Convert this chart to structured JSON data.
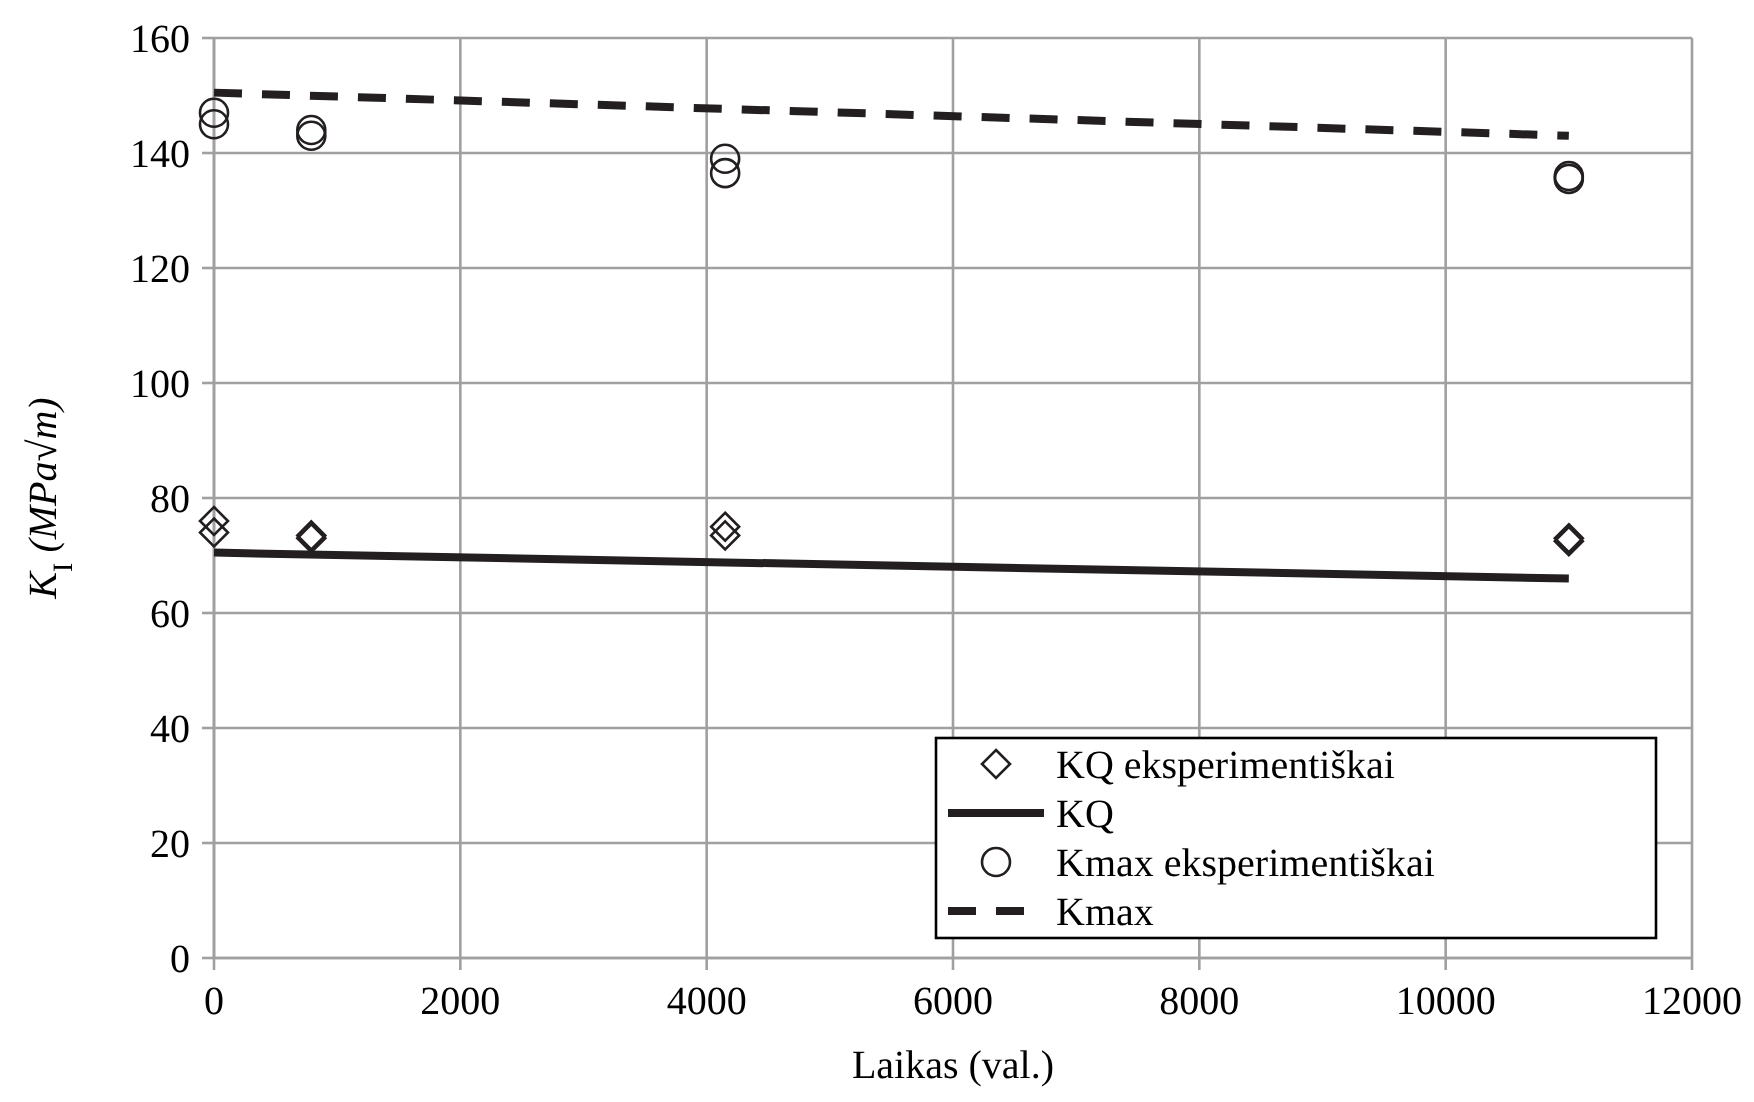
{
  "chart_data": {
    "type": "scatter",
    "xlabel": "Laikas (val.)",
    "ylabel": "K$_{I}$ (MPa√m)",
    "xlim": [
      0,
      12000
    ],
    "xticks": [
      0,
      2000,
      4000,
      6000,
      8000,
      10000,
      12000
    ],
    "ylim": [
      0,
      160
    ],
    "yticks": [
      0,
      20,
      40,
      60,
      80,
      100,
      120,
      140,
      160
    ],
    "grid": true,
    "legend": "bottom right",
    "series": [
      {
        "name": "KQ eksperimentiškai",
        "marker": "diamond",
        "color": "#231f20",
        "x": [
          0,
          0,
          790,
          790,
          4150,
          4150,
          11000,
          11000
        ],
        "values": [
          76,
          74,
          73.5,
          73,
          75,
          73.5,
          73,
          72.5
        ]
      },
      {
        "name": "KQ",
        "type": "line",
        "line_style": "solid",
        "color": "#231f20",
        "x": [
          0,
          11000
        ],
        "values": [
          70.5,
          66
        ]
      },
      {
        "name": "Kmax eksperimentiškai",
        "marker": "circle",
        "color": "#231f20",
        "x": [
          0,
          0,
          790,
          790,
          4150,
          4150,
          11000,
          11000
        ],
        "values": [
          147,
          145,
          144,
          143,
          139,
          136.5,
          136,
          135.5
        ]
      },
      {
        "name": "Kmax",
        "type": "line",
        "line_style": "dashed",
        "color": "#231f20",
        "x": [
          0,
          11000
        ],
        "values": [
          150.5,
          143
        ]
      }
    ]
  }
}
